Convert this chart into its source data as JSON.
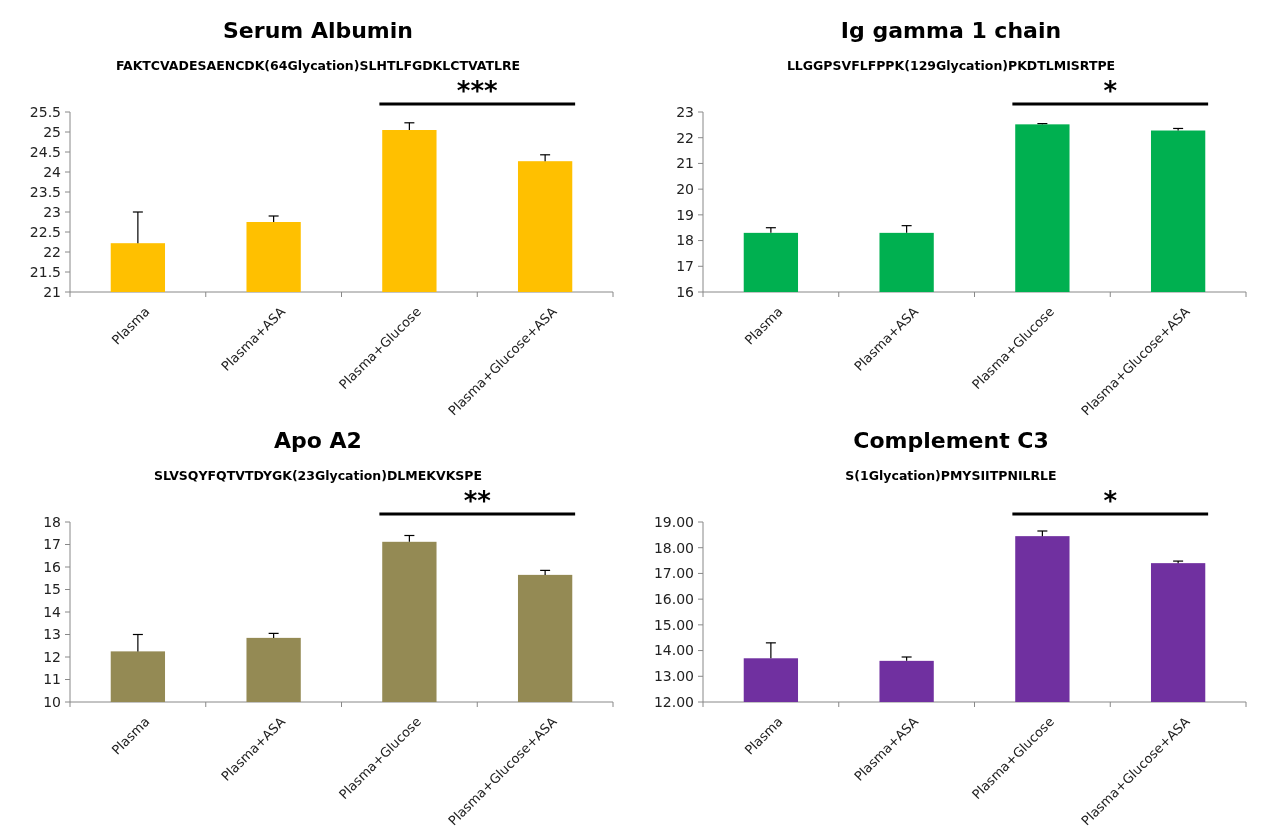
{
  "chart_data": [
    {
      "type": "bar",
      "title": "Serum Albumin",
      "subtitle": "FAKTCVADESAENCDK(64Glycation)SLHTLFGDKLCTVATLRE",
      "categories": [
        "Plasma",
        "Plasma+ASA",
        "Plasma+Glucose",
        "Plasma+Glucose+ASA"
      ],
      "values": [
        22.22,
        22.75,
        25.05,
        24.27
      ],
      "errors": [
        [
          22.22,
          23.0
        ],
        [
          22.75,
          22.9
        ],
        [
          25.05,
          25.23
        ],
        [
          24.27,
          24.43
        ]
      ],
      "color": "#ffc000",
      "ylim": [
        21,
        25.5
      ],
      "yticks": [
        21,
        21.5,
        22,
        22.5,
        23,
        23.5,
        24,
        24.5,
        25,
        25.5
      ],
      "annotations": [
        "***"
      ]
    },
    {
      "type": "bar",
      "title": "Ig gamma 1 chain",
      "subtitle": "LLGGPSVFLFPPK(129Glycation)PKDTLMISRTPE",
      "categories": [
        "Plasma",
        "Plasma+ASA",
        "Plasma+Glucose",
        "Plasma+Glucose+ASA"
      ],
      "values": [
        18.3,
        18.3,
        22.52,
        22.28
      ],
      "errors": [
        [
          18.3,
          18.5
        ],
        [
          18.3,
          18.58
        ],
        [
          22.52,
          22.55
        ],
        [
          22.28,
          22.36
        ]
      ],
      "color": "#00b050",
      "ylim": [
        16,
        23
      ],
      "yticks": [
        16,
        17,
        18,
        19,
        20,
        21,
        22,
        23
      ],
      "annotations": [
        "*"
      ]
    },
    {
      "type": "bar",
      "title": "Apo A2",
      "subtitle": "SLVSQYFQTVTDYGK(23Glycation)DLMEKVKSPE",
      "categories": [
        "Plasma",
        "Plasma+ASA",
        "Plasma+Glucose",
        "Plasma+Glucose+ASA"
      ],
      "values": [
        12.25,
        12.85,
        17.12,
        15.65
      ],
      "errors": [
        [
          12.25,
          13.0
        ],
        [
          12.85,
          13.05
        ],
        [
          17.12,
          17.4
        ],
        [
          15.65,
          15.85
        ]
      ],
      "color": "#948a54",
      "ylim": [
        10,
        18
      ],
      "yticks": [
        10,
        11,
        12,
        13,
        14,
        15,
        16,
        17,
        18
      ],
      "annotations": [
        "**"
      ]
    },
    {
      "type": "bar",
      "title": "Complement C3",
      "subtitle": "S(1Glycation)PMYSIITPNILRLE",
      "categories": [
        "Plasma",
        "Plasma+ASA",
        "Plasma+Glucose",
        "Plasma+Glucose+ASA"
      ],
      "values": [
        13.7,
        13.6,
        18.45,
        17.4
      ],
      "errors": [
        [
          13.7,
          14.3
        ],
        [
          13.6,
          13.75
        ],
        [
          18.45,
          18.65
        ],
        [
          17.4,
          17.48
        ]
      ],
      "color": "#7030a0",
      "ylim": [
        12,
        19
      ],
      "yticks": [
        {
          "value": 12,
          "label": "12.00"
        },
        {
          "value": 13,
          "label": "13.00"
        },
        {
          "value": 14,
          "label": "14.00"
        },
        {
          "value": 15,
          "label": "15.00"
        },
        {
          "value": 16,
          "label": "16.00"
        },
        {
          "value": 17,
          "label": "17.00"
        },
        {
          "value": 18,
          "label": "18.00"
        },
        {
          "value": 19,
          "label": "19.00"
        }
      ],
      "annotations": [
        "*"
      ]
    }
  ]
}
